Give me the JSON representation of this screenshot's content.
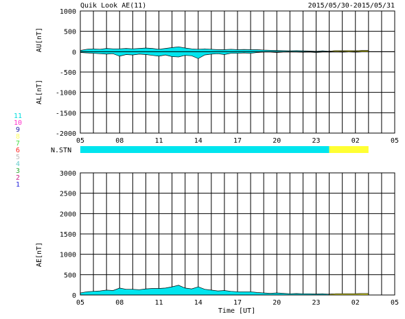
{
  "header": {
    "title": "Quik Look AE(11)",
    "date_range": "2015/05/30-2015/05/31"
  },
  "colors": {
    "cyan": "#00e5ee",
    "yellow": "#ffff33",
    "grid": "#000000"
  },
  "station_legend": [
    {
      "label": "11",
      "color": "#00dddd"
    },
    {
      "label": "10",
      "color": "#ff33cc"
    },
    {
      "label": "9",
      "color": "#2222aa"
    },
    {
      "label": "8",
      "color": "#ffff66"
    },
    {
      "label": "7",
      "color": "#44dd44"
    },
    {
      "label": "6",
      "color": "#ff2222"
    },
    {
      "label": "5",
      "color": "#bbbbbb"
    },
    {
      "label": "4",
      "color": "#66cccc"
    },
    {
      "label": "3",
      "color": "#33aa33"
    },
    {
      "label": "2",
      "color": "#cc2288"
    },
    {
      "label": "1",
      "color": "#2222dd"
    }
  ],
  "nstn": {
    "label": "N.STN",
    "segments": [
      {
        "start": 5,
        "end": 24.0,
        "color": "#00e5ee"
      },
      {
        "start": 24.0,
        "end": 27.0,
        "color": "#ffff33"
      }
    ]
  },
  "chart_data": [
    {
      "type": "area",
      "name": "au-al",
      "ylabel_top": "AU[nT]",
      "ylabel_bottom": "AL[nT]",
      "xlabel": "",
      "ylim": [
        -2000,
        1000
      ],
      "yticks": [
        1000,
        500,
        0,
        -500,
        -1000,
        -1500,
        -2000
      ],
      "xlim": [
        5,
        29
      ],
      "xticks": [
        "05",
        "08",
        "11",
        "14",
        "17",
        "20",
        "23",
        "02",
        "05"
      ],
      "grid": true,
      "series": [
        {
          "name": "AU",
          "x": [
            5,
            5.5,
            6,
            6.5,
            7,
            7.5,
            8,
            8.5,
            9,
            9.5,
            10,
            10.5,
            11,
            11.5,
            12,
            12.5,
            13,
            13.5,
            14,
            14.5,
            15,
            15.5,
            16,
            16.5,
            17,
            17.5,
            18,
            18.5,
            19,
            19.5,
            20,
            20.5,
            21,
            21.5,
            22,
            22.5,
            23,
            23.5,
            24,
            24.5,
            25,
            25.5,
            26,
            26.5,
            27
          ],
          "values": [
            30,
            60,
            70,
            60,
            80,
            70,
            70,
            80,
            70,
            80,
            90,
            80,
            60,
            80,
            100,
            120,
            90,
            70,
            60,
            70,
            60,
            50,
            50,
            60,
            50,
            55,
            50,
            50,
            40,
            35,
            30,
            25,
            20,
            25,
            20,
            15,
            10,
            20,
            10,
            25,
            20,
            25,
            20,
            30,
            30
          ],
          "color": "#00e5ee"
        },
        {
          "name": "AL",
          "x": [
            5,
            5.5,
            6,
            6.5,
            7,
            7.5,
            8,
            8.5,
            9,
            9.5,
            10,
            10.5,
            11,
            11.5,
            12,
            12.5,
            13,
            13.5,
            14,
            14.5,
            15,
            15.5,
            16,
            16.5,
            17,
            17.5,
            18,
            18.5,
            19,
            19.5,
            20,
            20.5,
            21,
            21.5,
            22,
            22.5,
            23,
            23.5,
            24,
            24.5,
            25,
            25.5,
            26,
            26.5,
            27
          ],
          "values": [
            -20,
            -30,
            -40,
            -50,
            -60,
            -50,
            -110,
            -70,
            -80,
            -60,
            -70,
            -90,
            -110,
            -80,
            -120,
            -130,
            -90,
            -100,
            -170,
            -80,
            -60,
            -50,
            -70,
            -40,
            -40,
            -30,
            -40,
            -20,
            -10,
            -10,
            -20,
            -10,
            -10,
            -10,
            -15,
            -10,
            -20,
            -10,
            -10,
            -5,
            -10,
            -5,
            -10,
            -5,
            -5
          ],
          "color": "#00e5ee"
        }
      ]
    },
    {
      "type": "area",
      "name": "ae",
      "ylabel": "AE[nT]",
      "xlabel": "Time [UT]",
      "ylim": [
        0,
        3000
      ],
      "yticks": [
        3000,
        2500,
        2000,
        1500,
        1000,
        500,
        0
      ],
      "xlim": [
        5,
        29
      ],
      "xticks": [
        "05",
        "08",
        "11",
        "14",
        "17",
        "20",
        "23",
        "02",
        "05"
      ],
      "grid": true,
      "series": [
        {
          "name": "AE",
          "x": [
            5,
            5.5,
            6,
            6.5,
            7,
            7.5,
            8,
            8.5,
            9,
            9.5,
            10,
            10.5,
            11,
            11.5,
            12,
            12.5,
            13,
            13.5,
            14,
            14.5,
            15,
            15.5,
            16,
            16.5,
            17,
            17.5,
            18,
            18.5,
            19,
            19.5,
            20,
            20.5,
            21,
            21.5,
            22,
            22.5,
            23,
            23.5,
            24,
            24.5,
            25,
            25.5,
            26,
            26.5,
            27
          ],
          "values": [
            50,
            80,
            90,
            100,
            120,
            110,
            170,
            140,
            140,
            130,
            150,
            160,
            160,
            170,
            200,
            240,
            170,
            150,
            200,
            140,
            120,
            100,
            110,
            90,
            80,
            80,
            80,
            60,
            50,
            40,
            50,
            40,
            30,
            35,
            30,
            30,
            25,
            30,
            20,
            30,
            30,
            30,
            30,
            35,
            35
          ],
          "color": "#00e5ee"
        }
      ]
    }
  ]
}
